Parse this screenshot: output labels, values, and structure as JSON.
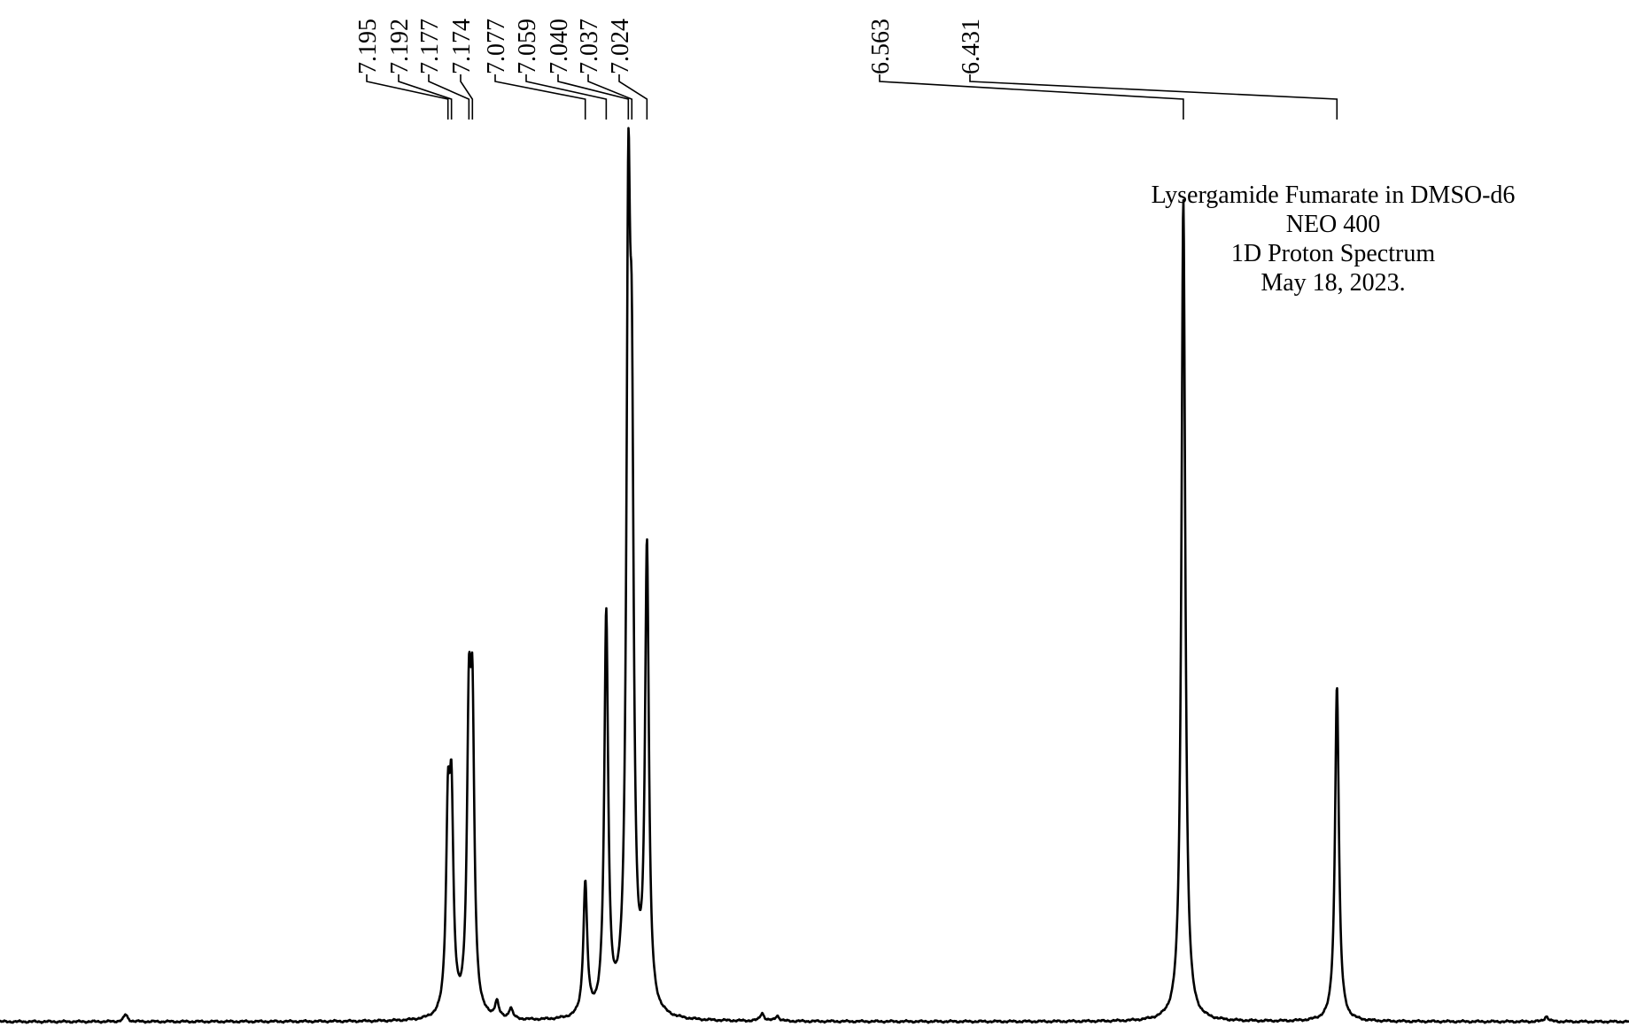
{
  "chart_data": {
    "type": "line",
    "title_lines": [
      "Lysergamide Fumarate in DMSO-d6",
      "NEO 400",
      "1D Proton Spectrum",
      "May 18, 2023."
    ],
    "x_reversed": true,
    "xlim": [
      7.58,
      6.18
    ],
    "peak_labels": [
      "7.195",
      "7.192",
      "7.177",
      "7.174",
      "7.077",
      "7.059",
      "7.040",
      "7.037",
      "7.024",
      "6.563",
      "6.431"
    ],
    "peaks": [
      {
        "ppm": 7.195,
        "height": 0.21
      },
      {
        "ppm": 7.192,
        "height": 0.22
      },
      {
        "ppm": 7.177,
        "height": 0.31
      },
      {
        "ppm": 7.174,
        "height": 0.31
      },
      {
        "ppm": 7.077,
        "height": 0.15
      },
      {
        "ppm": 7.059,
        "height": 0.45
      },
      {
        "ppm": 7.04,
        "height": 0.82
      },
      {
        "ppm": 7.037,
        "height": 0.56
      },
      {
        "ppm": 7.024,
        "height": 0.52
      },
      {
        "ppm": 6.563,
        "height": 0.93
      },
      {
        "ppm": 6.431,
        "height": 0.38
      }
    ],
    "minor_peaks": [
      {
        "ppm": 7.472,
        "height": 0.008
      },
      {
        "ppm": 7.153,
        "height": 0.018
      },
      {
        "ppm": 7.141,
        "height": 0.012
      },
      {
        "ppm": 6.925,
        "height": 0.009
      },
      {
        "ppm": 6.912,
        "height": 0.006
      },
      {
        "ppm": 6.251,
        "height": 0.006
      }
    ]
  }
}
